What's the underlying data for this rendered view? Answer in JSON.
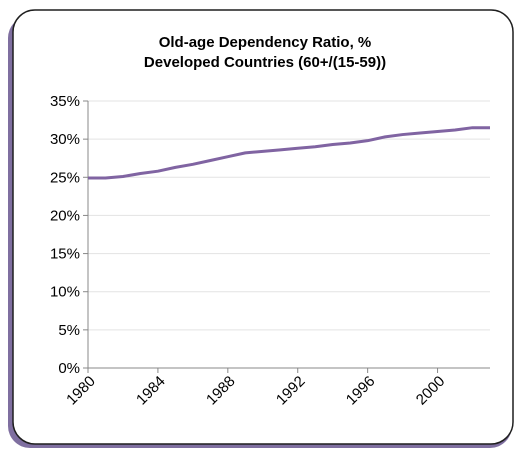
{
  "chart_data": {
    "type": "line",
    "title": "Old-age Dependency Ratio, %",
    "subtitle": "Developed Countries (60+/(15-59))",
    "x": [
      1980,
      1981,
      1982,
      1983,
      1984,
      1985,
      1986,
      1987,
      1988,
      1989,
      1990,
      1991,
      1992,
      1993,
      1994,
      1995,
      1996,
      1997,
      1998,
      1999,
      2000,
      2001,
      2002,
      2003
    ],
    "series": [
      {
        "color": "#8064a2",
        "values": [
          24.9,
          24.9,
          25.1,
          25.5,
          25.8,
          26.3,
          26.7,
          27.2,
          27.7,
          28.2,
          28.4,
          28.6,
          28.8,
          29.0,
          29.3,
          29.5,
          29.8,
          30.3,
          30.6,
          30.8,
          31.0,
          31.2,
          31.5,
          31.5
        ]
      }
    ],
    "xlim": [
      1980,
      2003
    ],
    "xticks": [
      1980,
      1984,
      1988,
      1992,
      1996,
      2000
    ],
    "ylim": [
      0,
      35
    ],
    "yticks": [
      {
        "value": 0,
        "label": "0%"
      },
      {
        "value": 5,
        "label": "5%"
      },
      {
        "value": 10,
        "label": "10%"
      },
      {
        "value": 15,
        "label": "15%"
      },
      {
        "value": 20,
        "label": "20%"
      },
      {
        "value": 25,
        "label": "25%"
      },
      {
        "value": 30,
        "label": "30%"
      },
      {
        "value": 35,
        "label": "35%"
      }
    ],
    "grid": true
  }
}
